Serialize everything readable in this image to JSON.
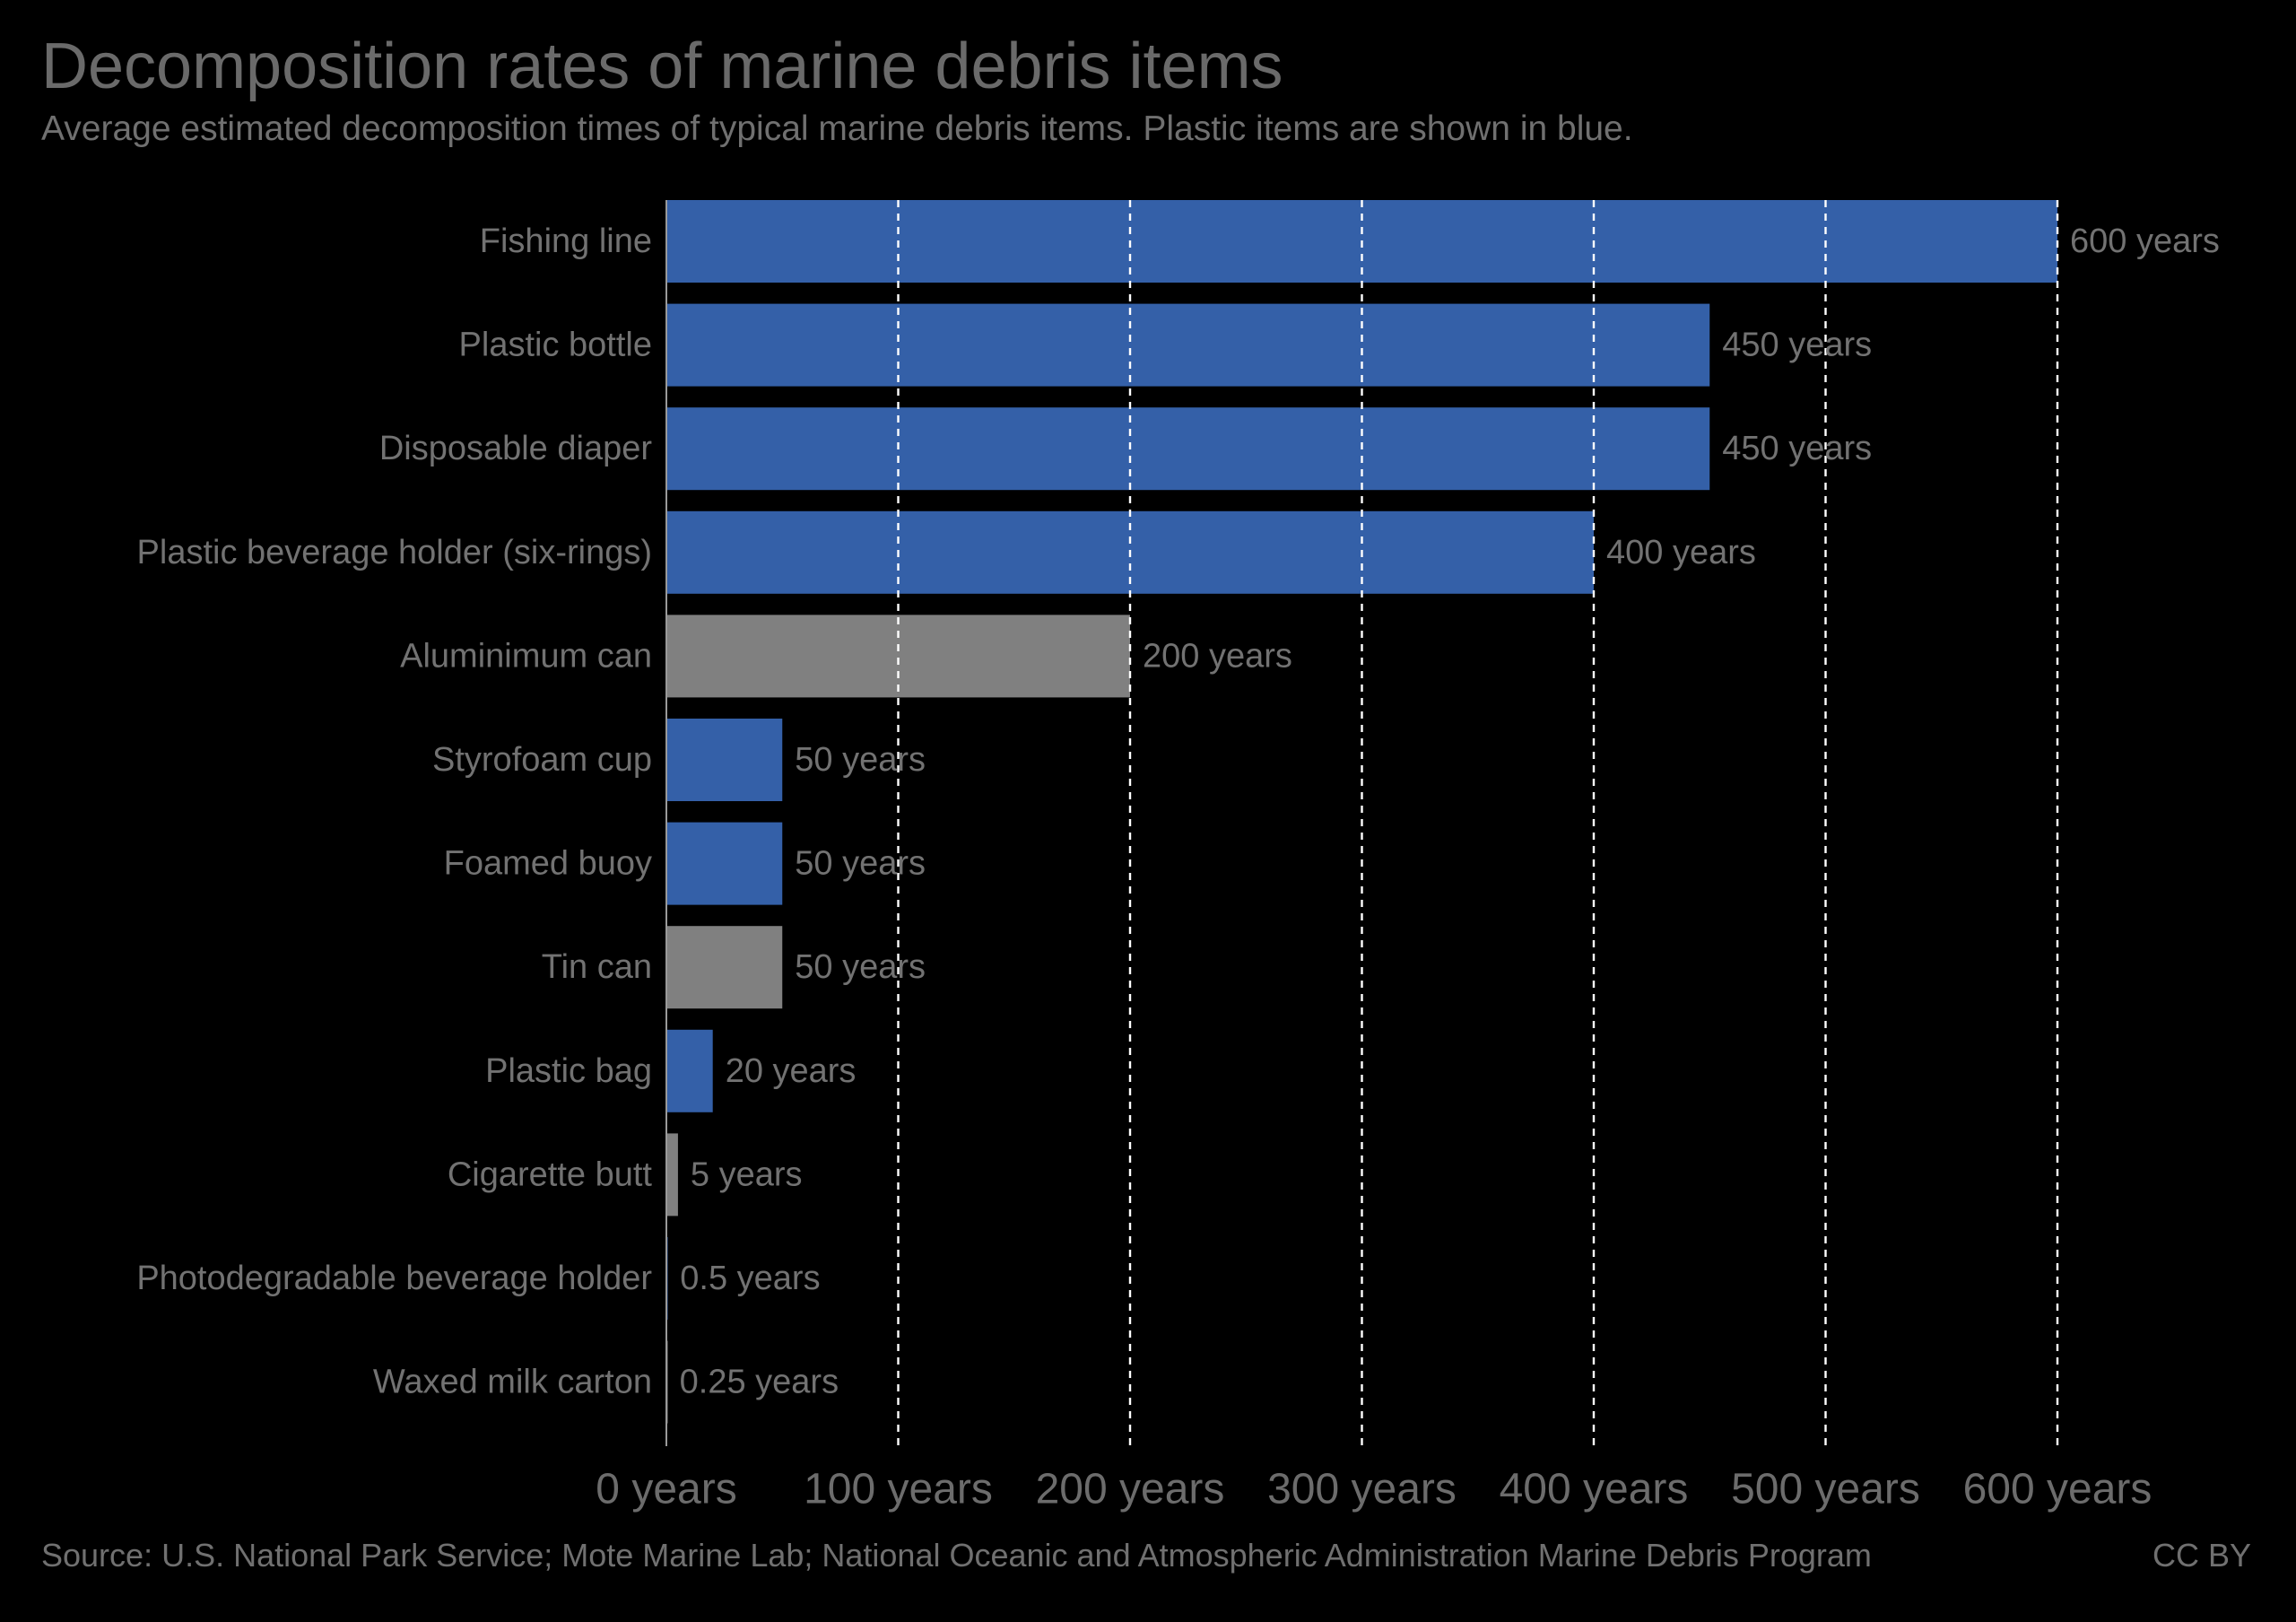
{
  "title": "Decomposition rates of marine debris items",
  "subtitle": "Average estimated decomposition times of typical marine debris items. Plastic items are shown in blue.",
  "source": "Source: U.S. National Park Service; Mote Marine Lab; National Oceanic and Atmospheric Administration Marine Debris Program",
  "license": "CC BY",
  "colors": {
    "plastic": "#3460a8",
    "other": "#808080",
    "grid": "#ffffff",
    "background": "#000000"
  },
  "chart_data": {
    "type": "bar",
    "orientation": "horizontal",
    "categories": [
      "Fishing line",
      "Plastic bottle",
      "Disposable diaper",
      "Plastic beverage holder (six-rings)",
      "Aluminimum can",
      "Styrofoam cup",
      "Foamed buoy",
      "Tin can",
      "Plastic bag",
      "Cigarette butt",
      "Photodegradable beverage holder",
      "Waxed milk carton"
    ],
    "values": [
      600,
      450,
      450,
      400,
      200,
      50,
      50,
      50,
      20,
      5,
      0.5,
      0.25
    ],
    "value_labels": [
      "600 years",
      "450 years",
      "450 years",
      "400 years",
      "200 years",
      "50 years",
      "50 years",
      "50 years",
      "20 years",
      "5 years",
      "0.5 years",
      "0.25 years"
    ],
    "material": [
      "plastic",
      "plastic",
      "plastic",
      "plastic",
      "other",
      "plastic",
      "plastic",
      "other",
      "plastic",
      "other",
      "plastic",
      "other"
    ],
    "xticks": [
      0,
      100,
      200,
      300,
      400,
      500,
      600
    ],
    "xtick_labels": [
      "0 years",
      "100 years",
      "200 years",
      "300 years",
      "400 years",
      "500 years",
      "600 years"
    ],
    "xlim": [
      0,
      600
    ],
    "xlabel": "",
    "ylabel": "",
    "grid": "vertical dashed"
  }
}
